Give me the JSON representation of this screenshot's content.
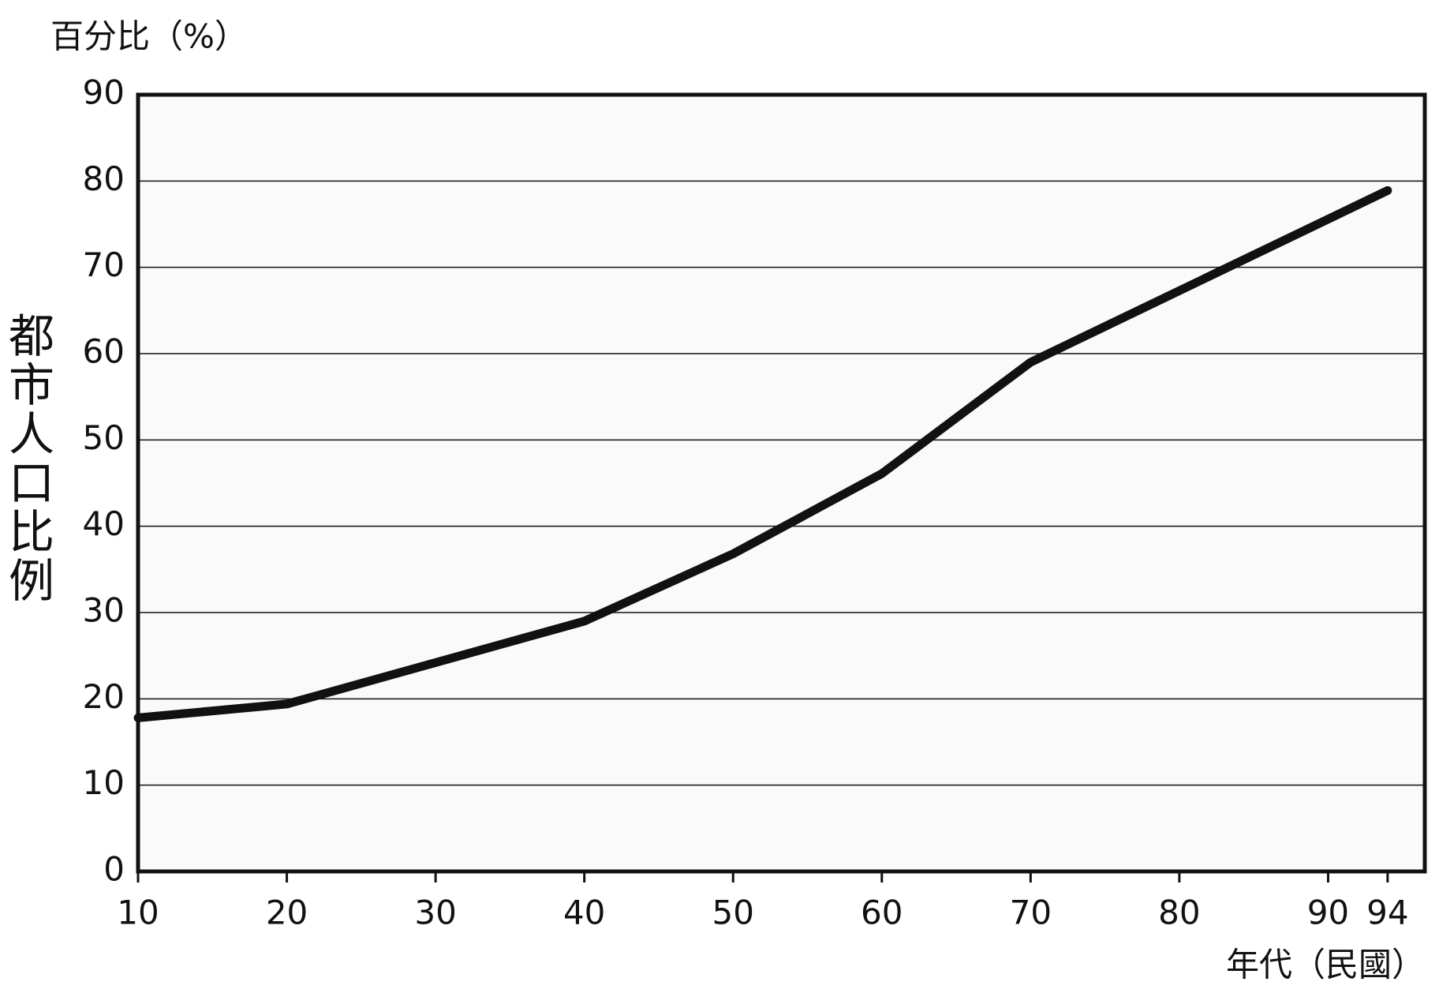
{
  "chart_data": {
    "type": "line",
    "title": "百分比（%）",
    "y_label": "都市人口比例",
    "x_label": "年代（民國）",
    "x": [
      10,
      20,
      40,
      50,
      60,
      70,
      94
    ],
    "values": [
      17.8,
      19.4,
      29,
      36.8,
      46.1,
      59,
      78.9
    ],
    "color": "#111111",
    "xlim": [
      10,
      96.5
    ],
    "xticks": [
      10,
      20,
      30,
      40,
      50,
      60,
      70,
      80,
      90,
      94
    ],
    "ylim": [
      0,
      90
    ],
    "yticks": [
      0,
      10,
      20,
      30,
      40,
      50,
      60,
      70,
      80,
      90
    ],
    "grid": true
  }
}
